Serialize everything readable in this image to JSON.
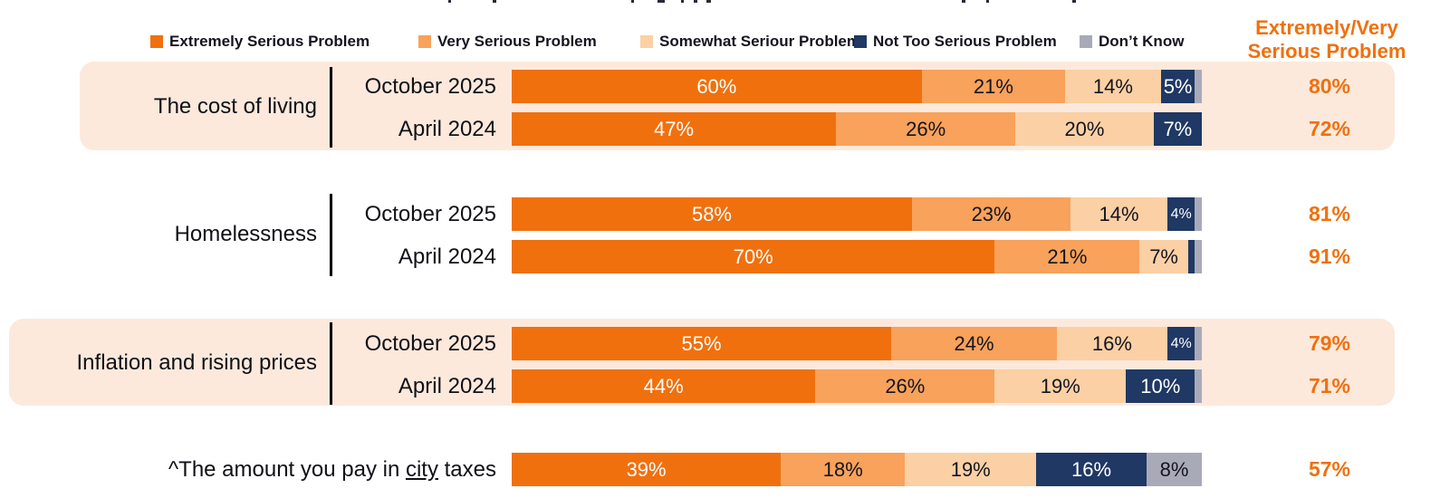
{
  "colors": {
    "extremely": "#f0700e",
    "very": "#f8a25b",
    "somewhat": "#fbd0a5",
    "not_too": "#1f3864",
    "dont_know": "#a9aab8",
    "highlight_bg": "#fce9dc",
    "accent_orange": "#f0700e",
    "text_dark": "#14141e",
    "text_light": "#ffffff"
  },
  "legend": {
    "items": [
      {
        "key": "extremely",
        "label": "Extremely Serious Problem",
        "color": "#f0700e"
      },
      {
        "key": "very",
        "label": "Very Serious Problem",
        "color": "#f8a25b"
      },
      {
        "key": "somewhat",
        "label": "Somewhat Seriour Problem",
        "color": "#fbd0a5"
      },
      {
        "key": "not_too",
        "label": "Not Too Serious Problem",
        "color": "#1f3864"
      },
      {
        "key": "dont_know",
        "label": "Don’t Know",
        "color": "#a9aab8"
      }
    ]
  },
  "right_header": {
    "text": "Extremely/Very Serious Problem",
    "color": "#f0700e"
  },
  "groups": [
    {
      "label": "The cost of living",
      "highlighted": true,
      "rows": [
        {
          "period": "October 2025",
          "summary": "80%",
          "segments": [
            {
              "key": "extremely",
              "value": 60,
              "label": "60%"
            },
            {
              "key": "very",
              "value": 21,
              "label": "21%"
            },
            {
              "key": "somewhat",
              "value": 14,
              "label": "14%"
            },
            {
              "key": "not_too",
              "value": 5,
              "label": "5%"
            },
            {
              "key": "dont_know",
              "value": 1,
              "label": ""
            }
          ]
        },
        {
          "period": "April 2024",
          "summary": "72%",
          "segments": [
            {
              "key": "extremely",
              "value": 47,
              "label": "47%"
            },
            {
              "key": "very",
              "value": 26,
              "label": "26%"
            },
            {
              "key": "somewhat",
              "value": 20,
              "label": "20%"
            },
            {
              "key": "not_too",
              "value": 7,
              "label": "7%"
            }
          ]
        }
      ]
    },
    {
      "label": "Homelessness",
      "highlighted": false,
      "rows": [
        {
          "period": "October 2025",
          "summary": "81%",
          "segments": [
            {
              "key": "extremely",
              "value": 58,
              "label": "58%"
            },
            {
              "key": "very",
              "value": 23,
              "label": "23%"
            },
            {
              "key": "somewhat",
              "value": 14,
              "label": "14%"
            },
            {
              "key": "not_too",
              "value": 4,
              "label": "4%",
              "small": true
            },
            {
              "key": "dont_know",
              "value": 1,
              "label": ""
            }
          ]
        },
        {
          "period": "April 2024",
          "summary": "91%",
          "segments": [
            {
              "key": "extremely",
              "value": 70,
              "label": "70%"
            },
            {
              "key": "very",
              "value": 21,
              "label": "21%"
            },
            {
              "key": "somewhat",
              "value": 7,
              "label": "7%"
            },
            {
              "key": "not_too",
              "value": 1,
              "label": ""
            },
            {
              "key": "dont_know",
              "value": 1,
              "label": ""
            }
          ]
        }
      ]
    },
    {
      "label": "Inflation and rising prices",
      "highlighted": true,
      "rows": [
        {
          "period": "October 2025",
          "summary": "79%",
          "segments": [
            {
              "key": "extremely",
              "value": 55,
              "label": "55%"
            },
            {
              "key": "very",
              "value": 24,
              "label": "24%"
            },
            {
              "key": "somewhat",
              "value": 16,
              "label": "16%"
            },
            {
              "key": "not_too",
              "value": 4,
              "label": "4%",
              "small": true
            },
            {
              "key": "dont_know",
              "value": 1,
              "label": ""
            }
          ]
        },
        {
          "period": "April 2024",
          "summary": "71%",
          "segments": [
            {
              "key": "extremely",
              "value": 44,
              "label": "44%"
            },
            {
              "key": "very",
              "value": 26,
              "label": "26%"
            },
            {
              "key": "somewhat",
              "value": 19,
              "label": "19%"
            },
            {
              "key": "not_too",
              "value": 10,
              "label": "10%"
            },
            {
              "key": "dont_know",
              "value": 1,
              "label": ""
            }
          ]
        }
      ]
    },
    {
      "label": "^The amount you pay in city taxes",
      "label_parts": {
        "prefix": "^The amount you pay in ",
        "underlined": "city",
        "suffix": " taxes"
      },
      "highlighted": false,
      "single_row": true,
      "rows": [
        {
          "period": "",
          "summary": "57%",
          "segments": [
            {
              "key": "extremely",
              "value": 39,
              "label": "39%"
            },
            {
              "key": "very",
              "value": 18,
              "label": "18%"
            },
            {
              "key": "somewhat",
              "value": 19,
              "label": "19%"
            },
            {
              "key": "not_too",
              "value": 16,
              "label": "16%"
            },
            {
              "key": "dont_know",
              "value": 8,
              "label": "8%"
            }
          ]
        }
      ]
    }
  ],
  "chart_data": {
    "type": "bar",
    "orientation": "horizontal",
    "stacked": true,
    "unit": "percent",
    "xlim": [
      0,
      100
    ],
    "legend_position": "top",
    "series_names": [
      "Extremely Serious Problem",
      "Very Serious Problem",
      "Somewhat Seriour Problem",
      "Not Too Serious Problem",
      "Don't Know"
    ],
    "summary_column_header": "Extremely/Very Serious Problem",
    "rows": [
      {
        "group": "The cost of living",
        "period": "October 2025",
        "values": [
          60,
          21,
          14,
          5,
          1
        ],
        "extremely_very_summary": 80
      },
      {
        "group": "The cost of living",
        "period": "April 2024",
        "values": [
          47,
          26,
          20,
          7,
          0
        ],
        "extremely_very_summary": 72
      },
      {
        "group": "Homelessness",
        "period": "October 2025",
        "values": [
          58,
          23,
          14,
          4,
          1
        ],
        "extremely_very_summary": 81
      },
      {
        "group": "Homelessness",
        "period": "April 2024",
        "values": [
          70,
          21,
          7,
          1,
          1
        ],
        "extremely_very_summary": 91
      },
      {
        "group": "Inflation and rising prices",
        "period": "October 2025",
        "values": [
          55,
          24,
          16,
          4,
          1
        ],
        "extremely_very_summary": 79
      },
      {
        "group": "Inflation and rising prices",
        "period": "April 2024",
        "values": [
          44,
          26,
          19,
          10,
          1
        ],
        "extremely_very_summary": 71
      },
      {
        "group": "^The amount you pay in city taxes",
        "period": "",
        "values": [
          39,
          18,
          19,
          16,
          8
        ],
        "extremely_very_summary": 57
      }
    ]
  }
}
